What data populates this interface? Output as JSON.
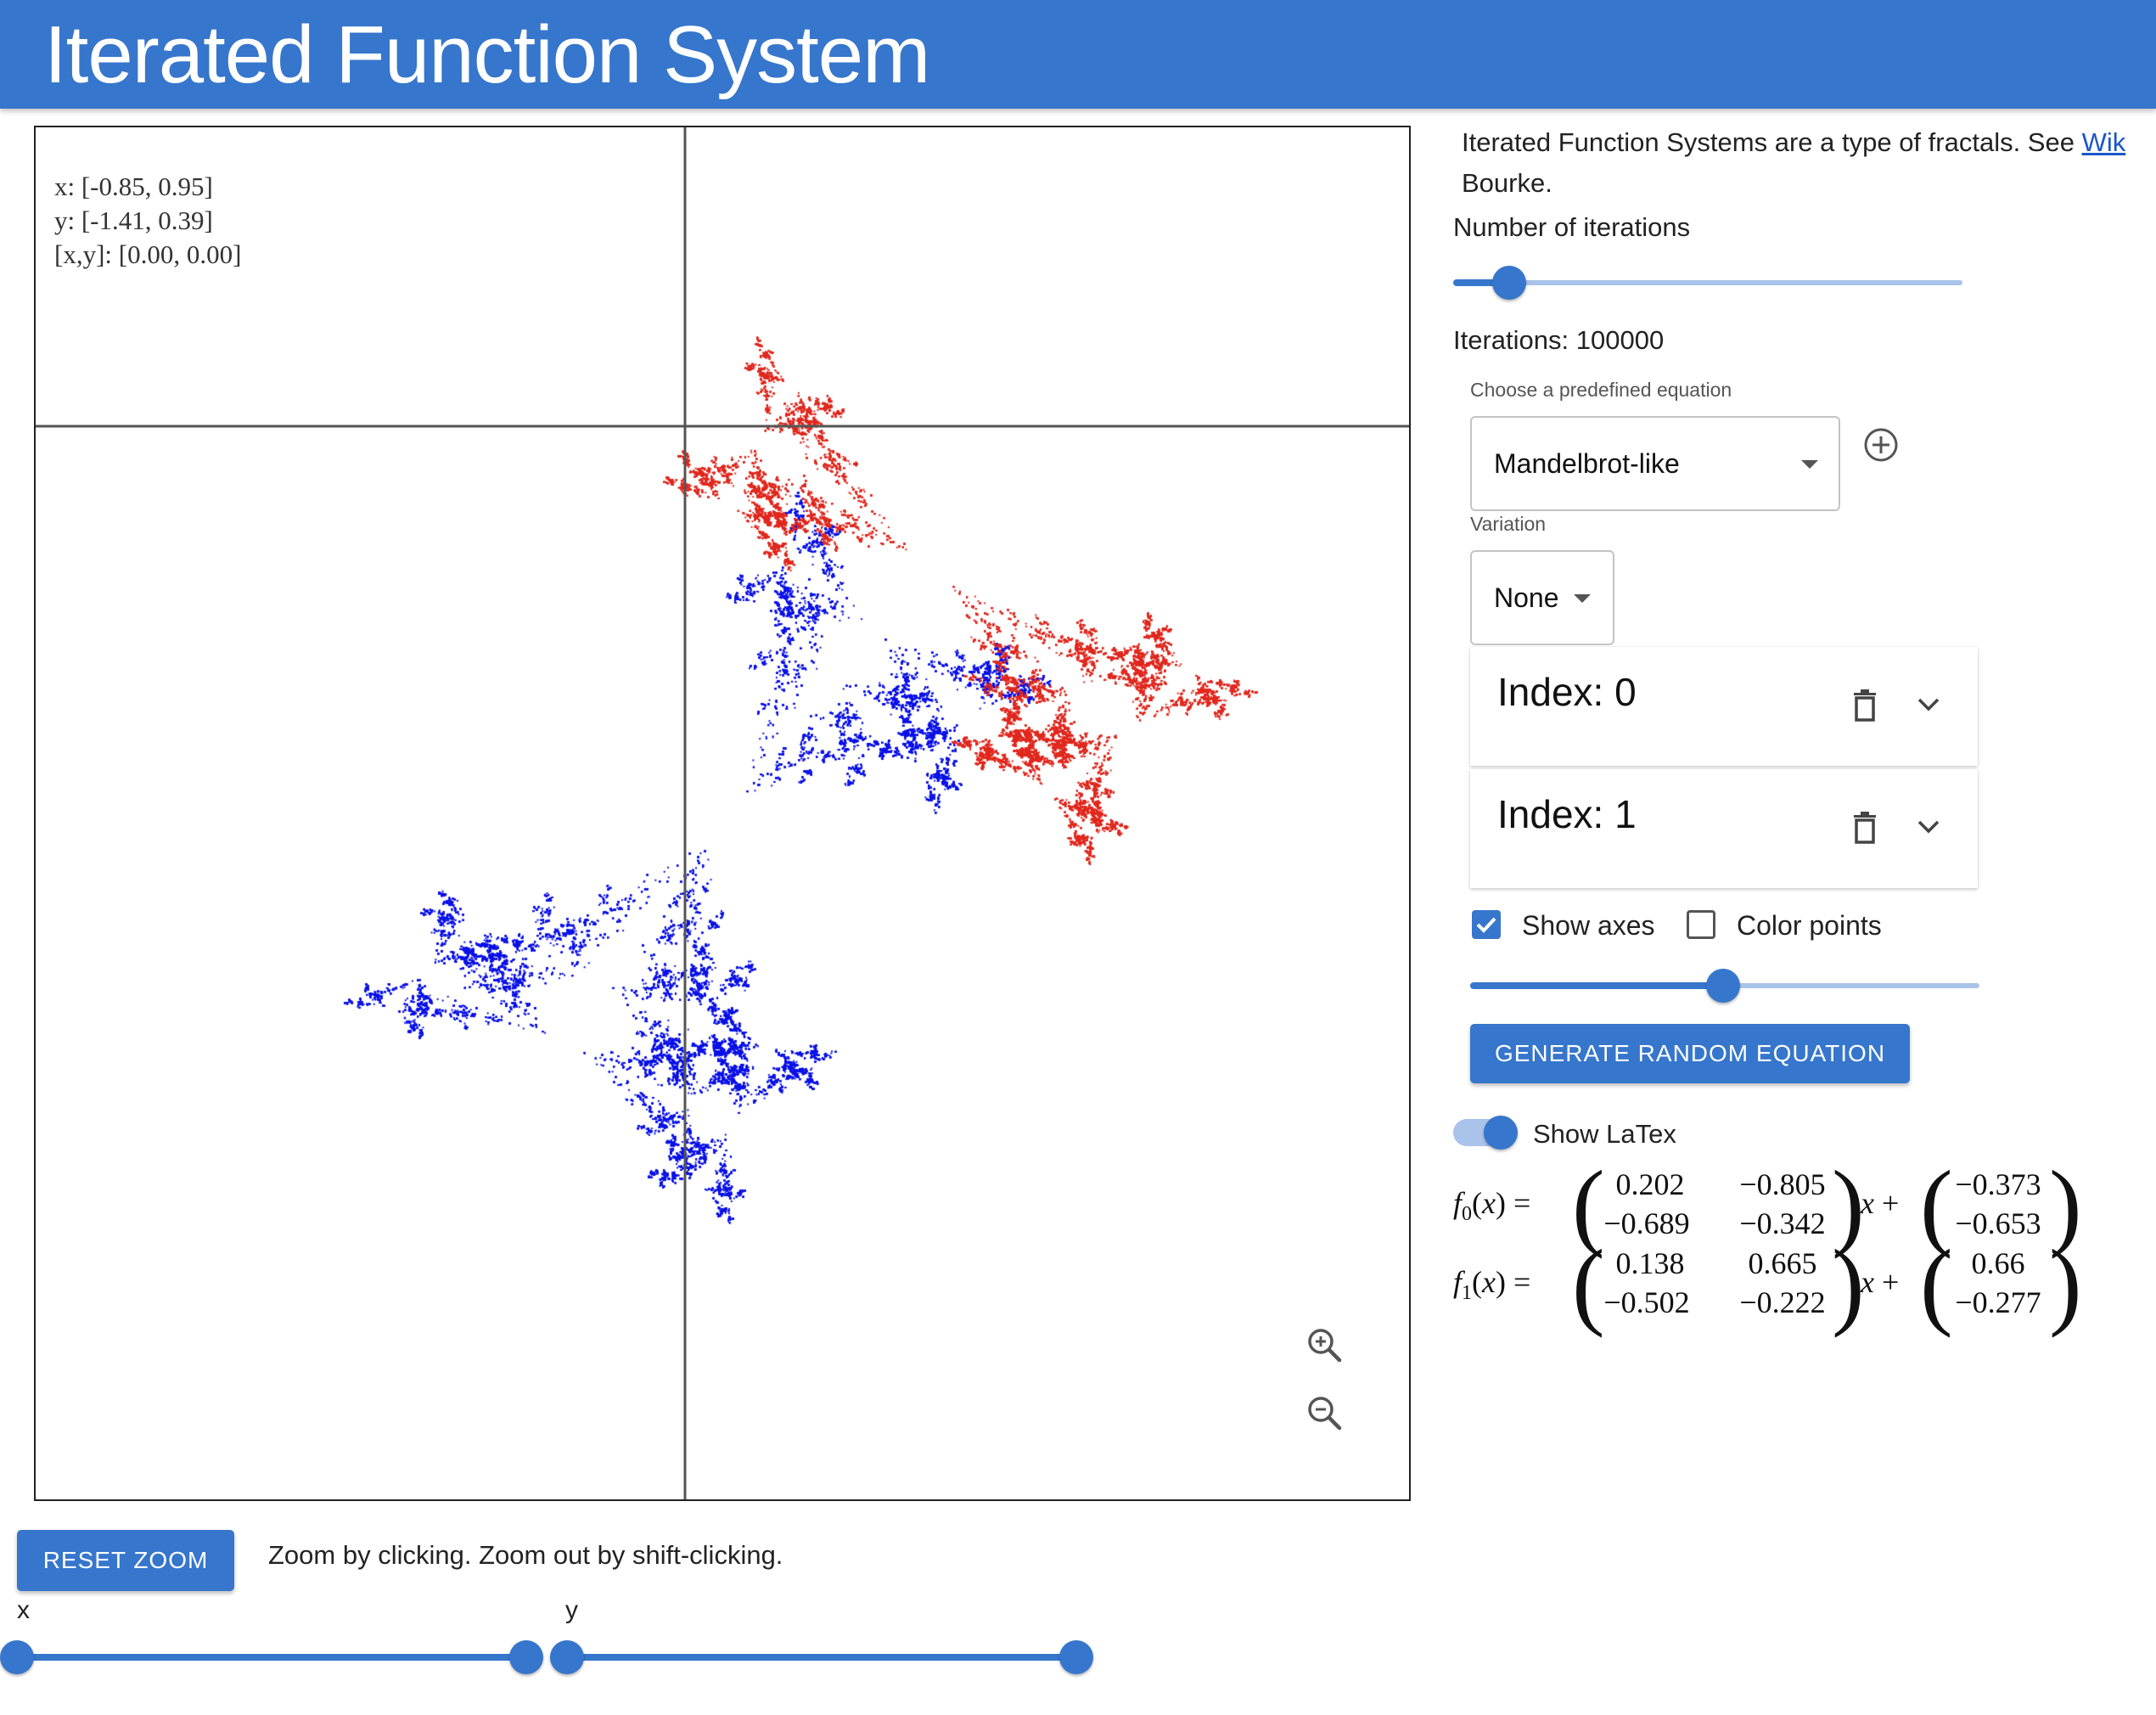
{
  "header": {
    "title": "Iterated Function System"
  },
  "canvas": {
    "coord_x": "x: [-0.85, 0.95]",
    "coord_y": "y: [-1.41, 0.39]",
    "coord_xy": "[x,y]: [0.00, 0.00]",
    "show_axes": true,
    "point_colors": {
      "f0": "#0b12e6",
      "f1": "#e0291f"
    }
  },
  "controls_bottom": {
    "reset_label": "RESET ZOOM",
    "hint": "Zoom by clicking. Zoom out by shift-clicking.",
    "x_label": "x",
    "y_label": "y"
  },
  "panel": {
    "intro_line1_text": "Iterated Function Systems are a type of fractals. See ",
    "intro_link": "Wik",
    "intro_line2": "Bourke.",
    "iterations_label": "Number of iterations",
    "iterations_text": "Iterations: 100000",
    "iterations_slider_level": 0.11,
    "equation_caption": "Choose a predefined equation",
    "equation_value": "Mandelbrot-like",
    "variation_caption": "Variation",
    "variation_value": "None",
    "cards": [
      {
        "title": "Index: 0"
      },
      {
        "title": "Index: 1"
      }
    ],
    "show_axes_label": "Show axes",
    "show_axes_checked": true,
    "color_points_label": "Color points",
    "color_points_checked": false,
    "color_slider_level": 0.5,
    "random_label": "GENERATE RANDOM EQUATION",
    "latex_label": "Show LaTex",
    "latex_on": true
  },
  "equations": [
    {
      "name": "f0",
      "lhs_sub": "0",
      "matrix": [
        [
          "0.202",
          "−0.805"
        ],
        [
          "−0.689",
          "−0.342"
        ]
      ],
      "vector": [
        "−0.373",
        "−0.653"
      ]
    },
    {
      "name": "f1",
      "lhs_sub": "1",
      "matrix": [
        [
          "0.138",
          "0.665"
        ],
        [
          "−0.502",
          "−0.222"
        ]
      ],
      "vector": [
        "0.66",
        "−0.277"
      ]
    }
  ],
  "colors": {
    "accent": "#3676cc",
    "accent_light": "#a9c3ea"
  }
}
